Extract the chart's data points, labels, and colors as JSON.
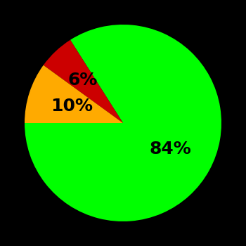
{
  "slices": [
    84,
    6,
    10
  ],
  "labels": [
    "84%",
    "6%",
    "10%"
  ],
  "colors": [
    "#00ff00",
    "#cc0000",
    "#ffaa00"
  ],
  "background_color": "#000000",
  "startangle": 180,
  "label_fontsize": 18,
  "label_fontweight": "bold",
  "label_color": "#000000",
  "label_radii": [
    0.55,
    0.6,
    0.55
  ]
}
